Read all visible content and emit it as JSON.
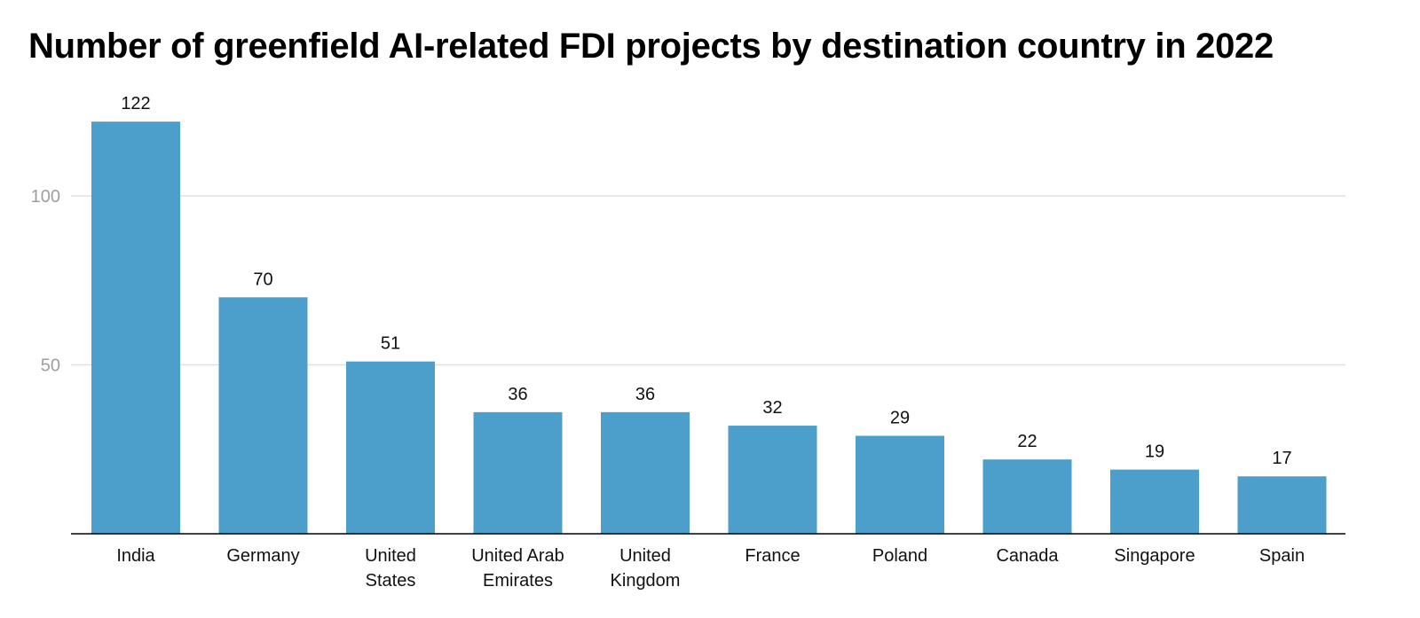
{
  "chart_data": {
    "type": "bar",
    "title": "Number of greenfield AI-related FDI projects by destination country in 2022",
    "xlabel": "",
    "ylabel": "",
    "categories": [
      "India",
      "Germany",
      "United States",
      "United Arab Emirates",
      "United Kingdom",
      "France",
      "Poland",
      "Canada",
      "Singapore",
      "Spain"
    ],
    "category_lines": [
      [
        "India"
      ],
      [
        "Germany"
      ],
      [
        "United",
        "States"
      ],
      [
        "United Arab",
        "Emirates"
      ],
      [
        "United",
        "Kingdom"
      ],
      [
        "France"
      ],
      [
        "Poland"
      ],
      [
        "Canada"
      ],
      [
        "Singapore"
      ],
      [
        "Spain"
      ]
    ],
    "values": [
      122,
      70,
      51,
      36,
      36,
      32,
      29,
      22,
      19,
      17
    ],
    "data_labels": [
      "122",
      "70",
      "51",
      "36",
      "36",
      "32",
      "29",
      "22",
      "19",
      "17"
    ],
    "yticks": [
      50,
      100
    ],
    "ytick_labels": [
      "50",
      "100"
    ],
    "ylim": [
      0,
      130
    ],
    "grid": true,
    "legend": "none",
    "bar_color": "#4c9fca",
    "gridline_color": "#e0e0e0",
    "axis_color": "#000000"
  }
}
